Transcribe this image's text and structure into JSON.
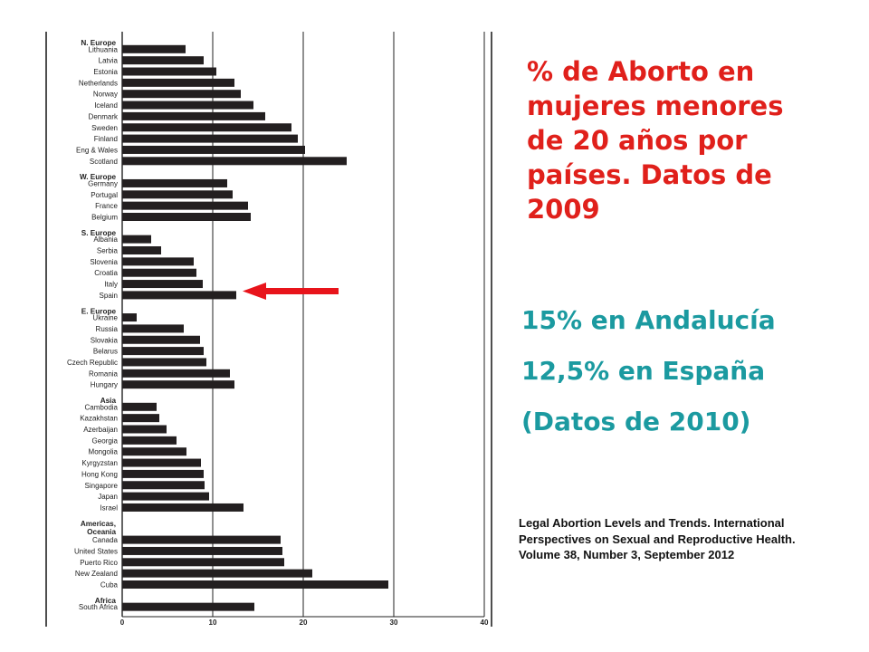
{
  "title": "% de Aborto en mujeres menores de 20 años por países. Datos de 2009",
  "stats": [
    "15% en Andalucía",
    "12,5% en España",
    "(Datos de 2010)"
  ],
  "source": [
    "Legal Abortion Levels and Trends. International",
    "Perspectives on Sexual and Reproductive Health.",
    "Volume 38, Number 3, September 2012"
  ],
  "colors": {
    "title": "#e0201b",
    "stats": "#1b9aa0",
    "bars": "#231f20",
    "arrow": "#e8141b"
  },
  "chart_data": {
    "type": "bar",
    "orientation": "horizontal",
    "xlim": [
      0,
      40
    ],
    "xticks": [
      0,
      10,
      20,
      30,
      40
    ],
    "highlighted": "Spain",
    "groups": [
      {
        "name": "N. Europe",
        "items": [
          {
            "label": "Lithuania",
            "value": 7.0
          },
          {
            "label": "Latvia",
            "value": 9.0
          },
          {
            "label": "Estonia",
            "value": 10.4
          },
          {
            "label": "Netherlands",
            "value": 12.4
          },
          {
            "label": "Norway",
            "value": 13.1
          },
          {
            "label": "Iceland",
            "value": 14.5
          },
          {
            "label": "Denmark",
            "value": 15.8
          },
          {
            "label": "Sweden",
            "value": 18.7
          },
          {
            "label": "Finland",
            "value": 19.4
          },
          {
            "label": "Eng & Wales",
            "value": 20.2
          },
          {
            "label": "Scotland",
            "value": 24.8
          }
        ]
      },
      {
        "name": "W. Europe",
        "items": [
          {
            "label": "Germany",
            "value": 11.6
          },
          {
            "label": "Portugal",
            "value": 12.2
          },
          {
            "label": "France",
            "value": 13.9
          },
          {
            "label": "Belgium",
            "value": 14.2
          }
        ]
      },
      {
        "name": "S. Europe",
        "items": [
          {
            "label": "Albania",
            "value": 3.2
          },
          {
            "label": "Serbia",
            "value": 4.3
          },
          {
            "label": "Slovenia",
            "value": 7.9
          },
          {
            "label": "Croatia",
            "value": 8.2
          },
          {
            "label": "Italy",
            "value": 8.9
          },
          {
            "label": "Spain",
            "value": 12.6
          }
        ]
      },
      {
        "name": "E. Europe",
        "items": [
          {
            "label": "Ukraine",
            "value": 1.6
          },
          {
            "label": "Russia",
            "value": 6.8
          },
          {
            "label": "Slovakia",
            "value": 8.6
          },
          {
            "label": "Belarus",
            "value": 9.0
          },
          {
            "label": "Czech Republic",
            "value": 9.3
          },
          {
            "label": "Romania",
            "value": 11.9
          },
          {
            "label": "Hungary",
            "value": 12.4
          }
        ]
      },
      {
        "name": "Asia",
        "items": [
          {
            "label": "Cambodia",
            "value": 3.8
          },
          {
            "label": "Kazakhstan",
            "value": 4.1
          },
          {
            "label": "Azerbaijan",
            "value": 4.9
          },
          {
            "label": "Georgia",
            "value": 6.0
          },
          {
            "label": "Mongolia",
            "value": 7.1
          },
          {
            "label": "Kyrgyzstan",
            "value": 8.7
          },
          {
            "label": "Hong Kong",
            "value": 9.0
          },
          {
            "label": "Singapore",
            "value": 9.1
          },
          {
            "label": "Japan",
            "value": 9.6
          },
          {
            "label": "Israel",
            "value": 13.4
          }
        ]
      },
      {
        "name": "Americas, Oceania",
        "items": [
          {
            "label": "Canada",
            "value": 17.5
          },
          {
            "label": "United States",
            "value": 17.7
          },
          {
            "label": "Puerto Rico",
            "value": 17.9
          },
          {
            "label": "New Zealand",
            "value": 21.0
          },
          {
            "label": "Cuba",
            "value": 29.4
          }
        ]
      },
      {
        "name": "Africa",
        "items": [
          {
            "label": "South Africa",
            "value": 14.6
          }
        ]
      }
    ]
  }
}
